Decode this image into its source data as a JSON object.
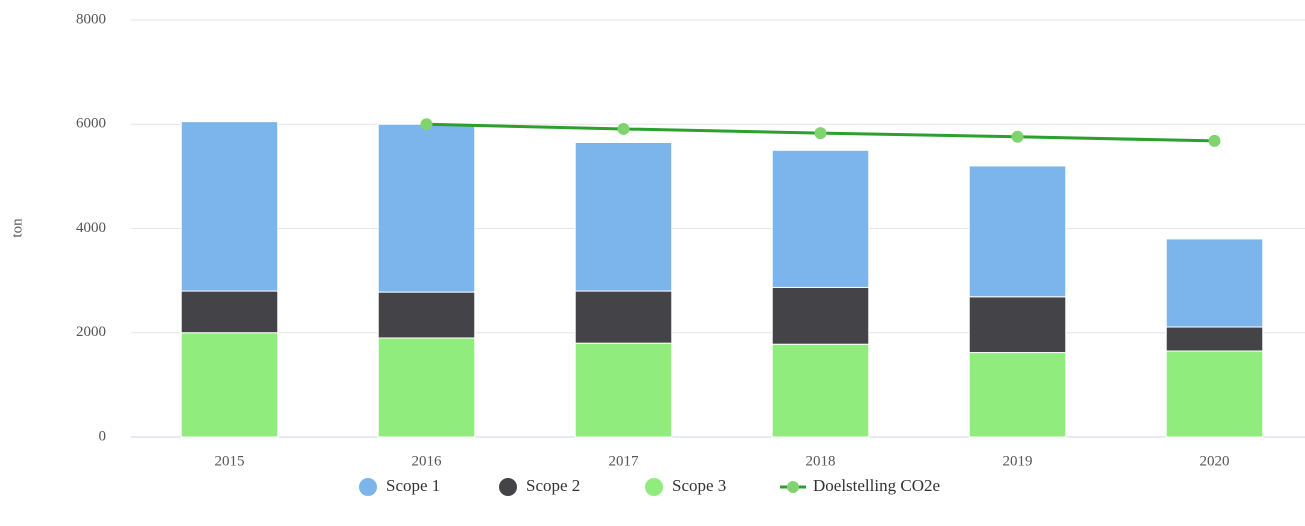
{
  "chart_data": {
    "type": "bar",
    "stacked": true,
    "y_axis_label": "ton",
    "categories": [
      "2015",
      "2016",
      "2017",
      "2018",
      "2019",
      "2020"
    ],
    "series": [
      {
        "name": "Scope 1",
        "color": "#7cb5ec",
        "values": [
          3250,
          3220,
          2850,
          2630,
          2510,
          1690
        ]
      },
      {
        "name": "Scope 2",
        "color": "#434348",
        "values": [
          800,
          880,
          1000,
          1090,
          1070,
          460
        ]
      },
      {
        "name": "Scope 3",
        "color": "#90ed7d",
        "values": [
          2000,
          1900,
          1800,
          1780,
          1620,
          1650
        ]
      },
      {
        "name": "Doelstelling CO2e",
        "type": "line",
        "color": "#2ca02c",
        "values": [
          null,
          6000,
          5910,
          5830,
          5760,
          5680
        ]
      }
    ],
    "ylim": [
      0,
      8000
    ],
    "yticks": [
      0,
      2000,
      4000,
      6000,
      8000
    ],
    "grid": true
  }
}
